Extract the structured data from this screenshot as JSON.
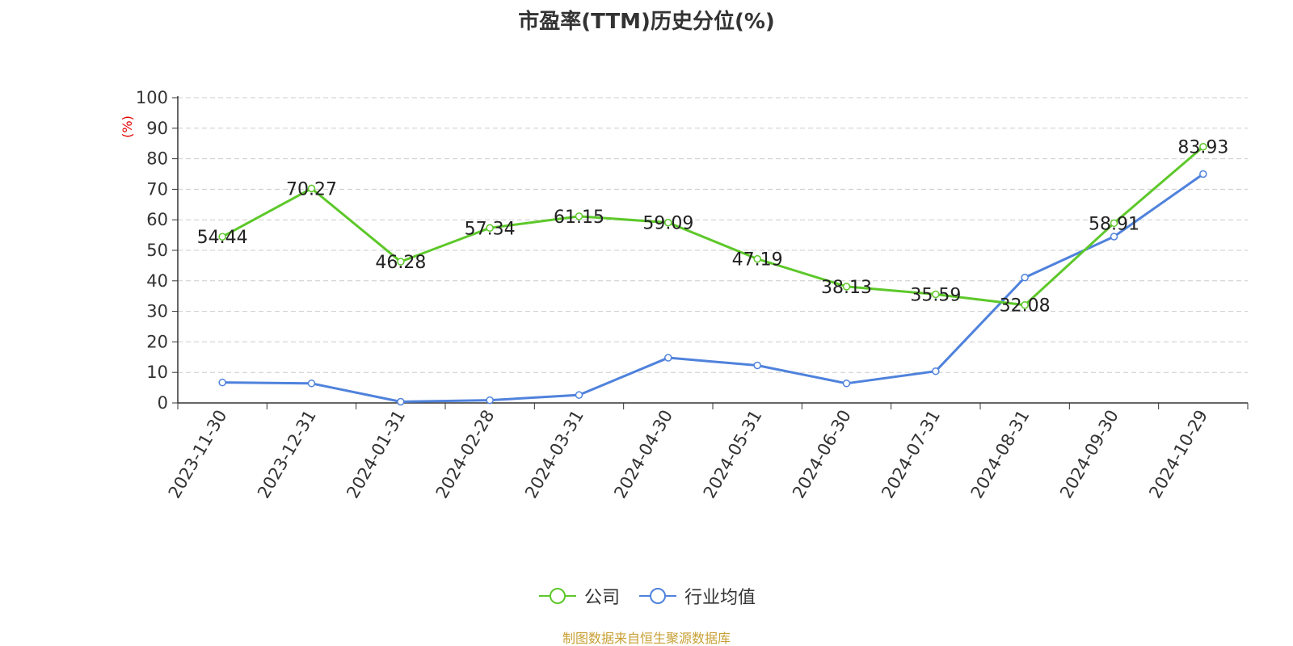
{
  "colors": {
    "company": "#5dc82a",
    "industry": "#4f82dc",
    "ylabel": "#e00000",
    "source": "#c8a035"
  },
  "chart_data": {
    "type": "line",
    "title": "市盈率(TTM)历史分位(%)",
    "ylabel": "(%)",
    "ylim": [
      0,
      100
    ],
    "yticks": [
      0,
      10,
      20,
      30,
      40,
      50,
      60,
      70,
      80,
      90,
      100
    ],
    "categories": [
      "2023-11-30",
      "2023-12-31",
      "2024-01-31",
      "2024-02-28",
      "2024-03-31",
      "2024-04-30",
      "2024-05-31",
      "2024-06-30",
      "2024-07-31",
      "2024-08-31",
      "2024-09-30",
      "2024-10-29"
    ],
    "grid": true,
    "legend_position": "bottom",
    "series": [
      {
        "name": "公司",
        "color": "#5dc82a",
        "values": [
          54.44,
          70.27,
          46.28,
          57.34,
          61.15,
          59.09,
          47.19,
          38.13,
          35.59,
          32.08,
          58.91,
          83.93
        ],
        "labels": [
          "54.44",
          "70.27",
          "46.28",
          "57.34",
          "61.15",
          "59.09",
          "47.19",
          "38.13",
          "35.59",
          "32.08",
          "58.91",
          "83.93"
        ]
      },
      {
        "name": "行业均值",
        "color": "#4f82dc",
        "values": [
          6.7,
          6.4,
          0.4,
          0.9,
          2.6,
          14.8,
          12.3,
          6.4,
          10.4,
          41.1,
          54.5,
          75.0
        ]
      }
    ]
  },
  "source": "制图数据来自恒生聚源数据库"
}
